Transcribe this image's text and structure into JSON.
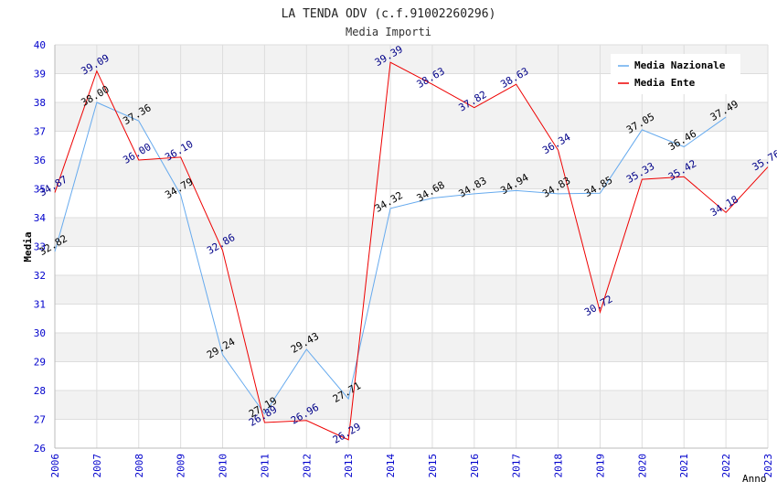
{
  "chart_data": {
    "type": "line",
    "title": "LA TENDA ODV (c.f.91002260296)",
    "subtitle": "Media Importi",
    "xlabel": "Anno",
    "ylabel": "Media",
    "ylim": [
      26,
      40
    ],
    "yticks": [
      "26",
      "27",
      "28",
      "29",
      "30",
      "31",
      "32",
      "33",
      "34",
      "35",
      "36",
      "37",
      "38",
      "39",
      "40"
    ],
    "categories": [
      "2006",
      "2007",
      "2008",
      "2009",
      "2010",
      "2011",
      "2012",
      "2013",
      "2014",
      "2015",
      "2016",
      "2017",
      "2018",
      "2019",
      "2020",
      "2021",
      "2022",
      "2023"
    ],
    "grid": true,
    "legend_position": "top-right",
    "series": [
      {
        "name": "Media Nazionale",
        "color": "#66aaee",
        "label_color": "#000000",
        "values": [
          32.82,
          38.0,
          37.36,
          34.79,
          29.24,
          27.19,
          29.43,
          27.71,
          34.32,
          34.68,
          34.83,
          34.94,
          34.83,
          34.85,
          37.05,
          36.46,
          37.49,
          null
        ],
        "labels": [
          "32.82",
          "38.00",
          "37.36",
          "34.79",
          "29.24",
          "27.19",
          "29.43",
          "27.71",
          "34.32",
          "34.68",
          "34.83",
          "34.94",
          "34.83",
          "34.85",
          "37.05",
          "36.46",
          "37.49",
          ""
        ]
      },
      {
        "name": "Media Ente",
        "color": "#ee0000",
        "label_color": "#000088",
        "values": [
          34.87,
          39.09,
          36.0,
          36.1,
          32.86,
          26.89,
          26.96,
          26.29,
          39.39,
          38.63,
          37.82,
          38.63,
          36.34,
          30.72,
          35.33,
          35.42,
          34.18,
          35.76
        ],
        "labels": [
          "34.87",
          "39.09",
          "36.00",
          "36.10",
          "32.86",
          "26.89",
          "26.96",
          "26.29",
          "39.39",
          "38.63",
          "37.82",
          "38.63",
          "36.34",
          "30.72",
          "35.33",
          "35.42",
          "34.18",
          "35.76"
        ]
      }
    ]
  },
  "colors": {
    "background": "#ffffff",
    "band": "#f2f2f2",
    "axis_text": "#0000cc",
    "title_text": "#222222"
  }
}
